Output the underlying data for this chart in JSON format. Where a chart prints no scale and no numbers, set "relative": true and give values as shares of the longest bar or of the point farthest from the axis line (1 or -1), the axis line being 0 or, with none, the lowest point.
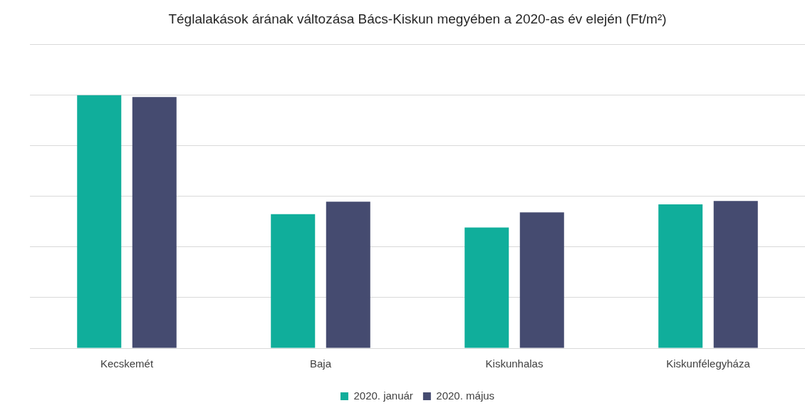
{
  "chart_data": {
    "type": "bar",
    "title": "Téglalakások árának változása Bács-Kiskun megyében a 2020-as év elején (Ft/m²)",
    "categories": [
      "Kecskemét",
      "Baja",
      "Kiskunhalas",
      "Kiskunfélegyháza"
    ],
    "relative": true,
    "series": [
      {
        "name": "2020. január",
        "color": "#10ae9b",
        "values": [
          1,
          0.53,
          0.477,
          0.569
        ]
      },
      {
        "name": "2020. május",
        "color": "#454b70",
        "values": [
          0.993,
          0.579,
          0.537,
          0.582
        ]
      }
    ],
    "grid": "y",
    "legend": "bottom"
  }
}
